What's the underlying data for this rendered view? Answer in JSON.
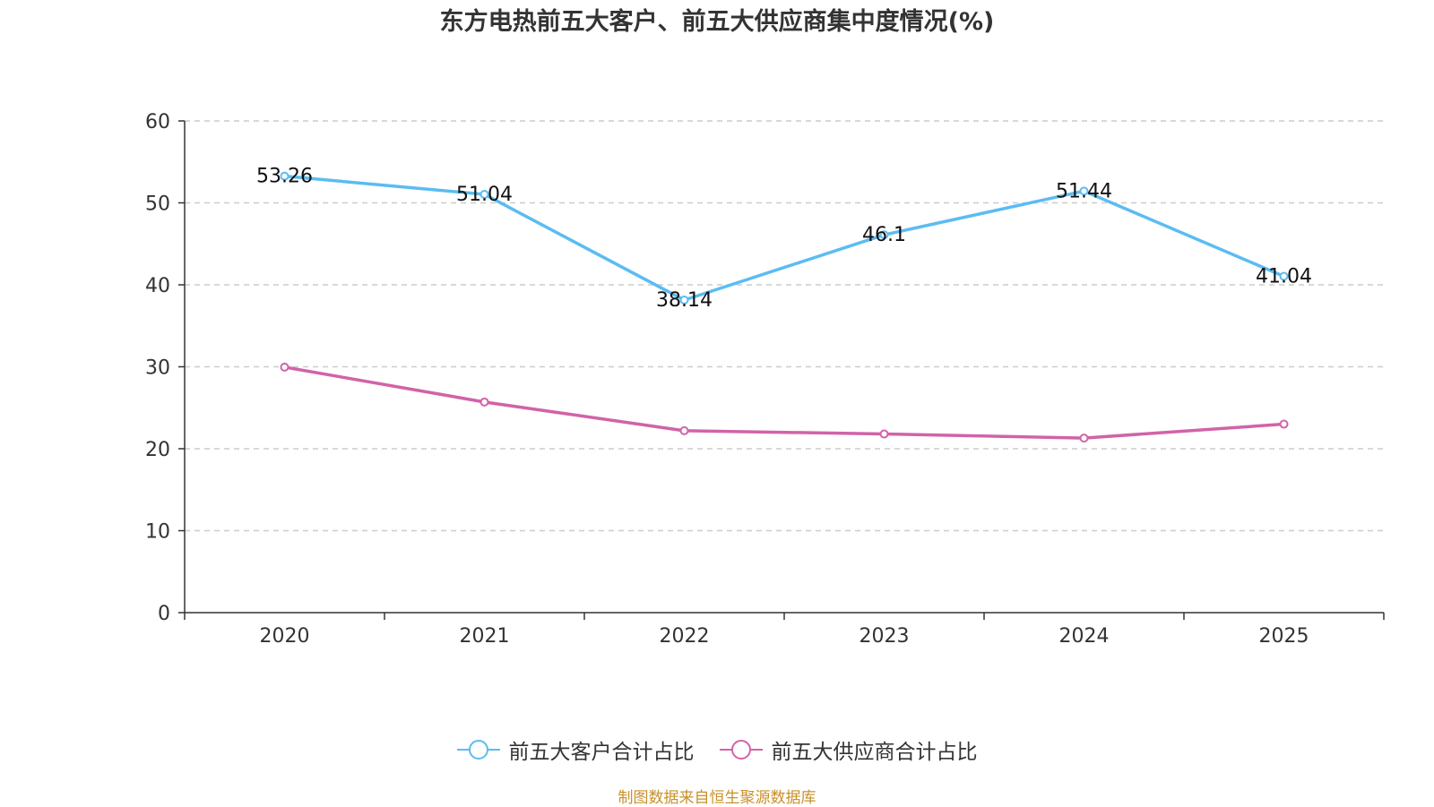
{
  "chart_data": {
    "type": "line",
    "title": "东方电热前五大客户、前五大供应商集中度情况(%)",
    "categories": [
      "2020",
      "2021",
      "2022",
      "2023",
      "2024",
      "2025"
    ],
    "ylim": [
      0,
      60
    ],
    "yticks": [
      0,
      10,
      20,
      30,
      40,
      50,
      60
    ],
    "grid": true,
    "legend_position": "bottom",
    "series": [
      {
        "name": "前五大客户合计占比",
        "color": "#5bbcf2",
        "values": [
          53.26,
          51.04,
          38.14,
          46.1,
          51.44,
          41.04
        ],
        "labels": [
          "53.26",
          "51.04",
          "38.14",
          "46.1",
          "51.44",
          "41.04"
        ],
        "show_labels": true
      },
      {
        "name": "前五大供应商合计占比",
        "color": "#d163a8",
        "values": [
          29.96,
          25.7,
          22.2,
          21.8,
          21.3,
          23.0
        ],
        "show_labels": false
      }
    ]
  },
  "source": "制图数据来自恒生聚源数据库"
}
